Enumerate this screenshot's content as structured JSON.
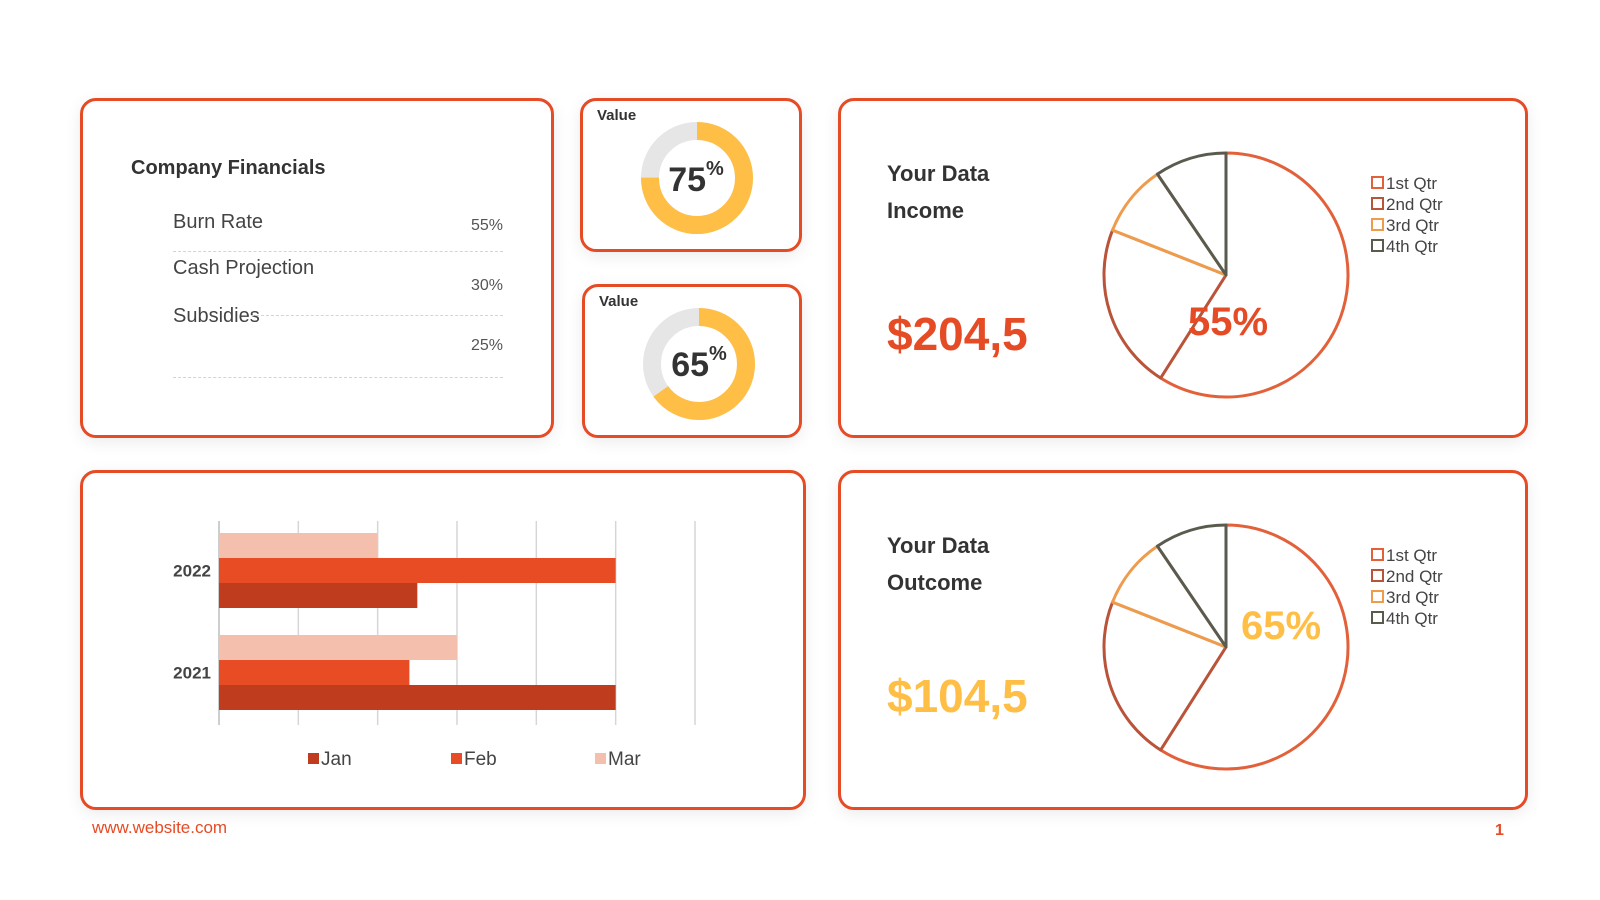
{
  "financials": {
    "title": "Company Financials",
    "rows": [
      {
        "label": "Burn Rate",
        "value": "55%"
      },
      {
        "label": "Cash Projection",
        "value": "30%"
      },
      {
        "label": "Subsidies",
        "value": "25%"
      }
    ]
  },
  "donuts": [
    {
      "label": "Value",
      "value": 75,
      "display": "75",
      "unit": "%",
      "ring_color": "#ffbe45",
      "track_color": "#e6e6e6"
    },
    {
      "label": "Value",
      "value": 65,
      "display": "65",
      "unit": "%",
      "ring_color": "#ffbe45",
      "track_color": "#e6e6e6"
    }
  ],
  "income": {
    "heading_line1": "Your Data",
    "heading_line2": "Income",
    "amount": "$204,5",
    "amount_color": "#e54b25",
    "pie_label": "55%",
    "pie_label_color": "#e54b25"
  },
  "outcome": {
    "heading_line1": "Your Data",
    "heading_line2": "Outcome",
    "amount": "$104,5",
    "amount_color": "#ffbe45",
    "pie_label": "65%",
    "pie_label_color": "#ffbe45"
  },
  "chart_data": [
    {
      "type": "pie",
      "categories": [
        "1st Qtr",
        "2nd Qtr",
        "3rd Qtr",
        "4th Qtr"
      ],
      "values": [
        59,
        22,
        9.5,
        9.5
      ],
      "colors": [
        "#e2613a",
        "#b9543a",
        "#ef9b4c",
        "#5a5a4e"
      ],
      "legend": "right"
    },
    {
      "type": "pie",
      "categories": [
        "1st Qtr",
        "2nd Qtr",
        "3rd Qtr",
        "4th Qtr"
      ],
      "values": [
        59,
        22,
        9.5,
        9.5
      ],
      "colors": [
        "#e2613a",
        "#b9543a",
        "#ef9b4c",
        "#5a5a4e"
      ],
      "legend": "right"
    },
    {
      "type": "bar",
      "orientation": "horizontal",
      "categories": [
        "2022",
        "2021"
      ],
      "series": [
        {
          "name": "Jan",
          "values": [
            2.5,
            5
          ],
          "color": "#c03c1e"
        },
        {
          "name": "Feb",
          "values": [
            5,
            2.4
          ],
          "color": "#e84c24"
        },
        {
          "name": "Mar",
          "values": [
            2,
            3
          ],
          "color": "#f5bfae"
        }
      ],
      "xlim": [
        0,
        6
      ],
      "grid": true,
      "legend": "bottom"
    }
  ],
  "footer": {
    "url": "www.website.com",
    "page": "1"
  }
}
